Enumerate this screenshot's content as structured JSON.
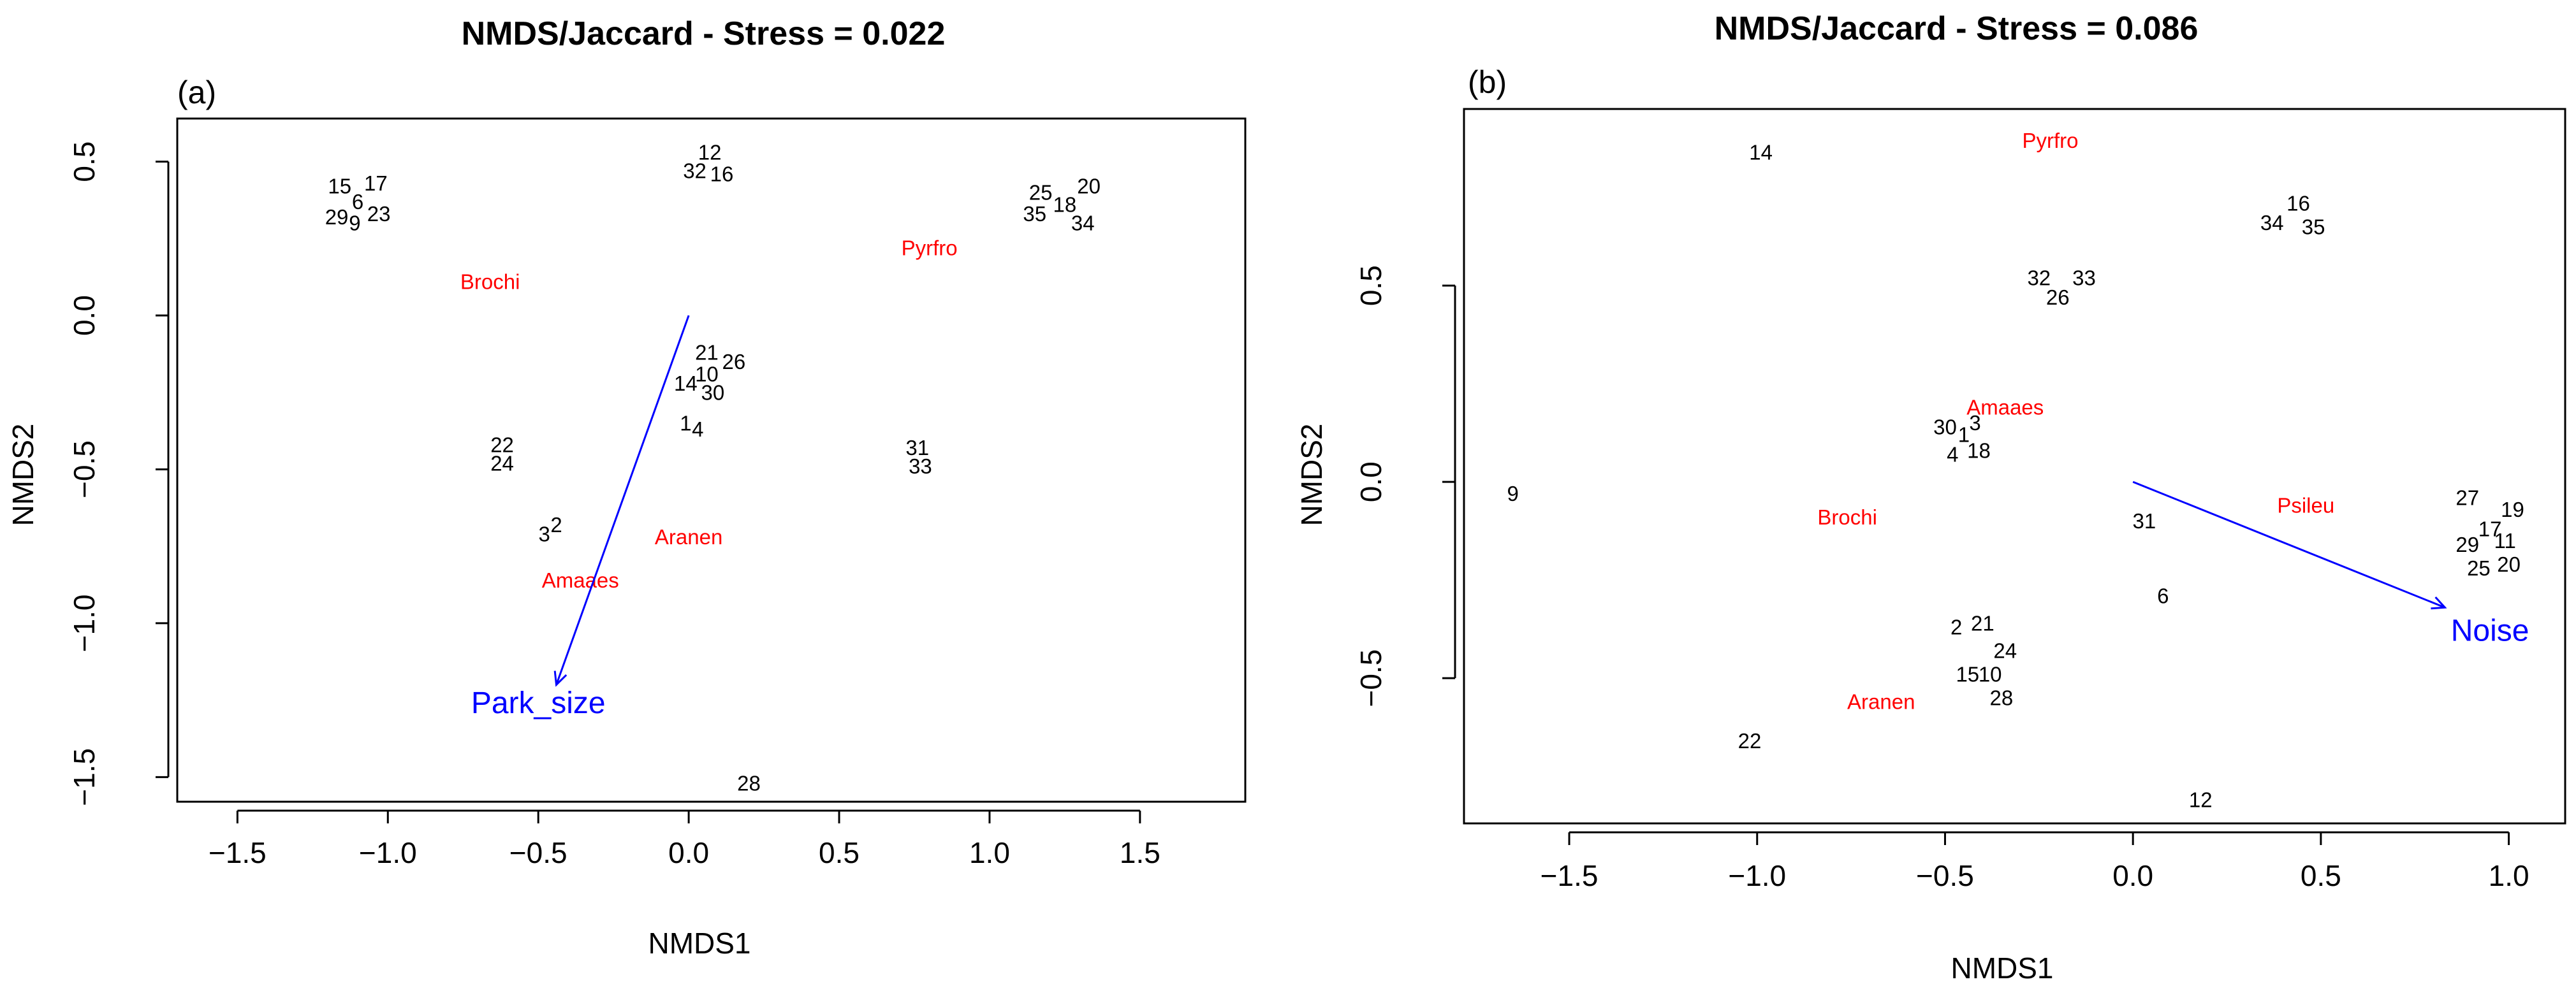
{
  "chart_data": [
    {
      "type": "scatter",
      "panel_label": "(a)",
      "title": "NMDS/Jaccard  - Stress = 0.022",
      "xlabel": "NMDS1",
      "ylabel": "NMDS2",
      "xlim": [
        -1.7,
        1.85
      ],
      "ylim": [
        -1.58,
        0.64
      ],
      "xticks": [
        -1.5,
        -1.0,
        -0.5,
        0.0,
        0.5,
        1.0,
        1.5
      ],
      "xtick_labels": [
        "−1.5",
        "−1.0",
        "−0.5",
        "0.0",
        "0.5",
        "1.0",
        "1.5"
      ],
      "yticks": [
        0.5,
        0.0,
        -0.5,
        -1.0,
        -1.5
      ],
      "ytick_labels": [
        "0.5",
        "0.0",
        "−0.5",
        "−1.0",
        "−1.5"
      ],
      "sites": [
        {
          "label": "15",
          "x": -1.16,
          "y": 0.42
        },
        {
          "label": "17",
          "x": -1.04,
          "y": 0.43
        },
        {
          "label": "6",
          "x": -1.1,
          "y": 0.37
        },
        {
          "label": "29",
          "x": -1.17,
          "y": 0.32
        },
        {
          "label": "9",
          "x": -1.11,
          "y": 0.3
        },
        {
          "label": "23",
          "x": -1.03,
          "y": 0.33
        },
        {
          "label": "12",
          "x": 0.07,
          "y": 0.53
        },
        {
          "label": "32",
          "x": 0.02,
          "y": 0.47
        },
        {
          "label": "16",
          "x": 0.11,
          "y": 0.46
        },
        {
          "label": "25",
          "x": 1.17,
          "y": 0.4
        },
        {
          "label": "20",
          "x": 1.33,
          "y": 0.42
        },
        {
          "label": "35",
          "x": 1.15,
          "y": 0.33
        },
        {
          "label": "18",
          "x": 1.25,
          "y": 0.36
        },
        {
          "label": "34",
          "x": 1.31,
          "y": 0.3
        },
        {
          "label": "21",
          "x": 0.06,
          "y": -0.12
        },
        {
          "label": "26",
          "x": 0.15,
          "y": -0.15
        },
        {
          "label": "10",
          "x": 0.06,
          "y": -0.19
        },
        {
          "label": "14",
          "x": -0.01,
          "y": -0.22
        },
        {
          "label": "30",
          "x": 0.08,
          "y": -0.25
        },
        {
          "label": "1",
          "x": -0.01,
          "y": -0.35
        },
        {
          "label": "4",
          "x": 0.03,
          "y": -0.37
        },
        {
          "label": "22",
          "x": -0.62,
          "y": -0.42
        },
        {
          "label": "24",
          "x": -0.62,
          "y": -0.48
        },
        {
          "label": "31",
          "x": 0.76,
          "y": -0.43
        },
        {
          "label": "33",
          "x": 0.77,
          "y": -0.49
        },
        {
          "label": "3",
          "x": -0.48,
          "y": -0.71
        },
        {
          "label": "2",
          "x": -0.44,
          "y": -0.68
        },
        {
          "label": "28",
          "x": 0.2,
          "y": -1.52
        }
      ],
      "species": [
        {
          "label": "Brochi",
          "x": -0.66,
          "y": 0.11
        },
        {
          "label": "Pyrfro",
          "x": 0.8,
          "y": 0.22
        },
        {
          "label": "Aranen",
          "x": 0.0,
          "y": -0.72
        },
        {
          "label": "Amaaes",
          "x": -0.36,
          "y": -0.86
        }
      ],
      "vector": {
        "label": "Park_size",
        "x": -0.44,
        "y": -1.2,
        "label_x": -0.5,
        "label_y": -1.26
      }
    },
    {
      "type": "scatter",
      "panel_label": "(b)",
      "title": "NMDS/Jaccard  - Stress = 0.086",
      "xlabel": "NMDS1",
      "ylabel": "NMDS2",
      "xlim": [
        -1.78,
        1.15
      ],
      "ylim": [
        -0.87,
        0.95
      ],
      "xticks": [
        -1.5,
        -1.0,
        -0.5,
        0.0,
        0.5,
        1.0
      ],
      "xtick_labels": [
        "−1.5",
        "−1.0",
        "−0.5",
        "0.0",
        "0.5",
        "1.0"
      ],
      "yticks": [
        0.5,
        0.0,
        -0.5
      ],
      "ytick_labels": [
        "0.5",
        "0.0",
        "−0.5"
      ],
      "sites": [
        {
          "label": "14",
          "x": -0.99,
          "y": 0.84
        },
        {
          "label": "16",
          "x": 0.44,
          "y": 0.71
        },
        {
          "label": "34",
          "x": 0.37,
          "y": 0.66
        },
        {
          "label": "35",
          "x": 0.48,
          "y": 0.65
        },
        {
          "label": "32",
          "x": -0.25,
          "y": 0.52
        },
        {
          "label": "33",
          "x": -0.13,
          "y": 0.52
        },
        {
          "label": "26",
          "x": -0.2,
          "y": 0.47
        },
        {
          "label": "30",
          "x": -0.5,
          "y": 0.14
        },
        {
          "label": "1",
          "x": -0.45,
          "y": 0.12
        },
        {
          "label": "3",
          "x": -0.42,
          "y": 0.15
        },
        {
          "label": "4",
          "x": -0.48,
          "y": 0.07
        },
        {
          "label": "18",
          "x": -0.41,
          "y": 0.08
        },
        {
          "label": "9",
          "x": -1.65,
          "y": -0.03
        },
        {
          "label": "31",
          "x": 0.03,
          "y": -0.1
        },
        {
          "label": "27",
          "x": 0.89,
          "y": -0.04
        },
        {
          "label": "19",
          "x": 1.01,
          "y": -0.07
        },
        {
          "label": "17",
          "x": 0.95,
          "y": -0.12
        },
        {
          "label": "29",
          "x": 0.89,
          "y": -0.16
        },
        {
          "label": "11",
          "x": 0.99,
          "y": -0.15
        },
        {
          "label": "25",
          "x": 0.92,
          "y": -0.22
        },
        {
          "label": "20",
          "x": 1.0,
          "y": -0.21
        },
        {
          "label": "6",
          "x": 0.08,
          "y": -0.29
        },
        {
          "label": "2",
          "x": -0.47,
          "y": -0.37
        },
        {
          "label": "21",
          "x": -0.4,
          "y": -0.36
        },
        {
          "label": "24",
          "x": -0.34,
          "y": -0.43
        },
        {
          "label": "15",
          "x": -0.44,
          "y": -0.49
        },
        {
          "label": "10",
          "x": -0.38,
          "y": -0.49
        },
        {
          "label": "28",
          "x": -0.35,
          "y": -0.55
        },
        {
          "label": "22",
          "x": -1.02,
          "y": -0.66
        },
        {
          "label": "12",
          "x": 0.18,
          "y": -0.81
        }
      ],
      "species": [
        {
          "label": "Pyrfro",
          "x": -0.22,
          "y": 0.87
        },
        {
          "label": "Amaaes",
          "x": -0.34,
          "y": 0.19
        },
        {
          "label": "Brochi",
          "x": -0.76,
          "y": -0.09
        },
        {
          "label": "Psileu",
          "x": 0.46,
          "y": -0.06
        },
        {
          "label": "Aranen",
          "x": -0.67,
          "y": -0.56
        }
      ],
      "vector": {
        "label": "Noise",
        "x": 0.83,
        "y": -0.32,
        "label_x": 0.95,
        "label_y": -0.38
      }
    }
  ],
  "colors": {
    "sites": "#000000",
    "species": "#ff0000",
    "vector": "#0000ff",
    "axis": "#000000"
  }
}
